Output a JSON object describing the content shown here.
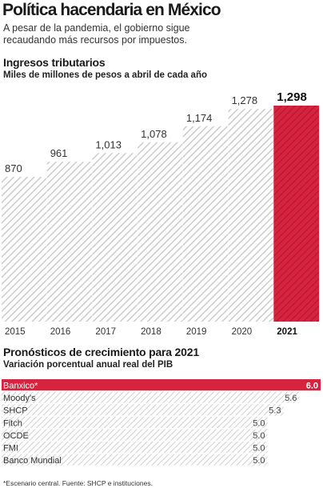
{
  "header": {
    "title": "Política hacendaria en México",
    "subtitle": "A pesar de la pandemia, el gobierno sigue recaudando más recursos por impuestos."
  },
  "colors": {
    "highlight": "#d6233f",
    "hatch": "#c8c8c8",
    "text": "#1a1a1a"
  },
  "chart_data": [
    {
      "type": "bar",
      "title": "Ingresos tributarios",
      "subtitle": "Miles de millones de pesos a abril de cada año",
      "categories": [
        "2015",
        "2016",
        "2017",
        "2018",
        "2019",
        "2020",
        "2021"
      ],
      "values": [
        870,
        961,
        1013,
        1078,
        1174,
        1278,
        1298
      ],
      "labels": [
        "870",
        "961",
        "1,013",
        "1,078",
        "1,174",
        "1,278",
        "1,298"
      ],
      "highlight": "2021",
      "ylim": [
        0,
        1298
      ],
      "grid": false
    },
    {
      "type": "bar",
      "orientation": "horizontal",
      "title": "Pronósticos de crecimiento para 2021",
      "subtitle": "Variación porcentual anual real del PIB",
      "categories": [
        "Banxico*",
        "Moody's",
        "SHCP",
        "Fitch",
        "OCDE",
        "FMI",
        "Banco Mundial"
      ],
      "values": [
        6.0,
        5.6,
        5.3,
        5.0,
        5.0,
        5.0,
        5.0
      ],
      "labels": [
        "6.0",
        "5.6",
        "5.3",
        "5.0",
        "5.0",
        "5.0",
        "5.0"
      ],
      "highlight": "Banxico*",
      "xlim": [
        0,
        6.0
      ],
      "grid": false
    }
  ],
  "footnote": "*Escenario central. Fuente: SHCP e instituciones."
}
